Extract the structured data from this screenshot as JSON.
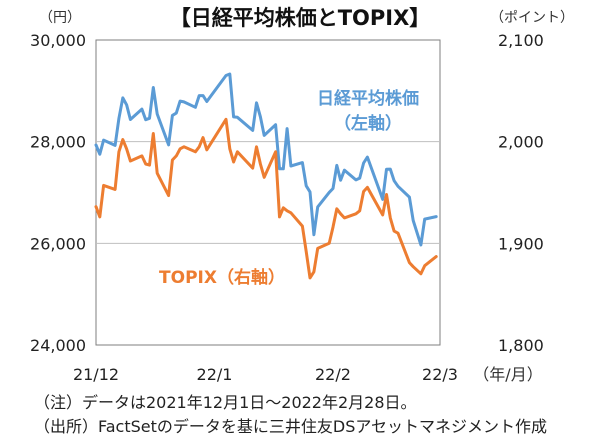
{
  "chart_data": {
    "type": "line",
    "title": "【日経平均株価とTOPIX】",
    "left_unit": "（円）",
    "right_unit": "（ポイント）",
    "x_unit": "（年/月）",
    "x_ticks": [
      "21/12",
      "22/1",
      "22/2",
      "22/3"
    ],
    "left_axis": {
      "range": [
        24000,
        30000
      ],
      "ticks": [
        "24,000",
        "26,000",
        "28,000",
        "30,000"
      ],
      "tick_values": [
        24000,
        26000,
        28000,
        30000
      ]
    },
    "right_axis": {
      "range": [
        1800,
        2100
      ],
      "ticks": [
        "1,800",
        "1,900",
        "2,000",
        "2,100"
      ],
      "tick_values": [
        1800,
        1900,
        2000,
        2100
      ]
    },
    "gridlines": [
      26000,
      28000
    ],
    "series": [
      {
        "name": "日経平均株価",
        "label_line1": "日経平均株価",
        "label_line2": "（左軸）",
        "axis": "left",
        "color": "#5b9bd5",
        "dates": [
          "2021-12-01",
          "2021-12-02",
          "2021-12-03",
          "2021-12-06",
          "2021-12-07",
          "2021-12-08",
          "2021-12-09",
          "2021-12-10",
          "2021-12-13",
          "2021-12-14",
          "2021-12-15",
          "2021-12-16",
          "2021-12-17",
          "2021-12-20",
          "2021-12-21",
          "2021-12-22",
          "2021-12-23",
          "2021-12-24",
          "2021-12-27",
          "2021-12-28",
          "2021-12-29",
          "2021-12-30",
          "2022-01-04",
          "2022-01-05",
          "2022-01-06",
          "2022-01-07",
          "2022-01-11",
          "2022-01-12",
          "2022-01-13",
          "2022-01-14",
          "2022-01-17",
          "2022-01-18",
          "2022-01-19",
          "2022-01-20",
          "2022-01-21",
          "2022-01-24",
          "2022-01-25",
          "2022-01-26",
          "2022-01-27",
          "2022-01-28",
          "2022-01-31",
          "2022-02-01",
          "2022-02-02",
          "2022-02-03",
          "2022-02-04",
          "2022-02-07",
          "2022-02-08",
          "2022-02-09",
          "2022-02-10",
          "2022-02-14",
          "2022-02-15",
          "2022-02-16",
          "2022-02-17",
          "2022-02-18",
          "2022-02-21",
          "2022-02-22",
          "2022-02-24",
          "2022-02-25",
          "2022-02-28"
        ],
        "values": [
          27935,
          27753,
          28030,
          27927,
          28455,
          28860,
          28725,
          28437,
          28640,
          28432,
          28459,
          29066,
          28545,
          27937,
          28517,
          28562,
          28799,
          28782,
          28676,
          28906,
          28906,
          28791,
          29301,
          29332,
          28487,
          28479,
          28222,
          28765,
          28489,
          28124,
          28333,
          27467,
          27467,
          28257,
          27522,
          27588,
          27131,
          27011,
          26170,
          26717,
          27001,
          27078,
          27533,
          27241,
          27439,
          27248,
          27284,
          27580,
          27696,
          26865,
          27459,
          27460,
          27232,
          27122,
          26910,
          26449,
          25970,
          26476,
          26526
        ]
      },
      {
        "name": "TOPIX",
        "label_line1": "TOPIX（右軸）",
        "axis": "right",
        "color": "#ed7d31",
        "dates": [
          "2021-12-01",
          "2021-12-02",
          "2021-12-03",
          "2021-12-06",
          "2021-12-07",
          "2021-12-08",
          "2021-12-09",
          "2021-12-10",
          "2021-12-13",
          "2021-12-14",
          "2021-12-15",
          "2021-12-16",
          "2021-12-17",
          "2021-12-20",
          "2021-12-21",
          "2021-12-22",
          "2021-12-23",
          "2021-12-24",
          "2021-12-27",
          "2021-12-28",
          "2021-12-29",
          "2021-12-30",
          "2022-01-04",
          "2022-01-05",
          "2022-01-06",
          "2022-01-07",
          "2022-01-11",
          "2022-01-12",
          "2022-01-13",
          "2022-01-14",
          "2022-01-17",
          "2022-01-18",
          "2022-01-19",
          "2022-01-20",
          "2022-01-21",
          "2022-01-24",
          "2022-01-25",
          "2022-01-26",
          "2022-01-27",
          "2022-01-28",
          "2022-01-31",
          "2022-02-01",
          "2022-02-02",
          "2022-02-03",
          "2022-02-04",
          "2022-02-07",
          "2022-02-08",
          "2022-02-09",
          "2022-02-10",
          "2022-02-14",
          "2022-02-15",
          "2022-02-16",
          "2022-02-17",
          "2022-02-18",
          "2022-02-21",
          "2022-02-22",
          "2022-02-24",
          "2022-02-25",
          "2022-02-28"
        ],
        "values": [
          1936,
          1926,
          1957,
          1953,
          1990,
          2002,
          1993,
          1981,
          1986,
          1978,
          1977,
          2008,
          1969,
          1947,
          1982,
          1986,
          1993,
          1995,
          1990,
          1995,
          2004,
          1992,
          2022,
          1993,
          1980,
          1990,
          1974,
          1995,
          1978,
          1965,
          1990,
          1926,
          1935,
          1932,
          1930,
          1917,
          1892,
          1866,
          1872,
          1895,
          1900,
          1916,
          1934,
          1929,
          1925,
          1929,
          1932,
          1951,
          1955,
          1928,
          1948,
          1925,
          1912,
          1910,
          1881,
          1877,
          1870,
          1878,
          1887
        ]
      }
    ]
  },
  "notes": {
    "note1": "（注）データは2021年12月1日～2022年2月28日。",
    "note2": "（出所）FactSetのデータを基に三井住友DSアセットマネジメント作成"
  }
}
